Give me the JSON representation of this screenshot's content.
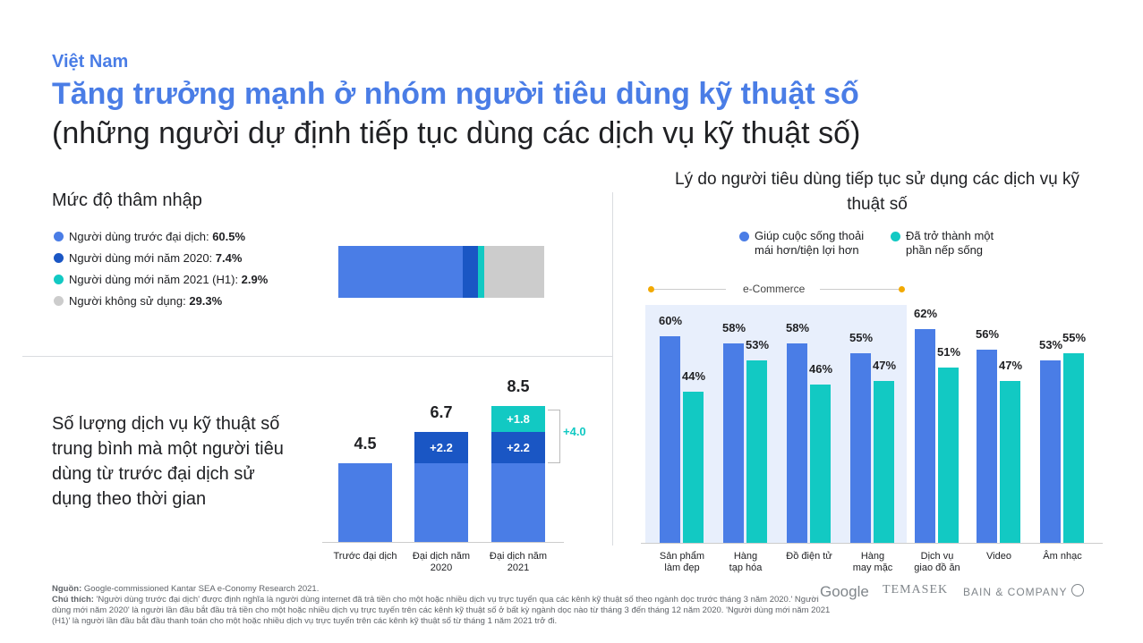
{
  "header": {
    "country": "Việt Nam",
    "title": "Tăng trưởng mạnh ở nhóm người tiêu dùng kỹ thuật số",
    "subtitle": "(những người dự định tiếp tục dùng các dịch vụ kỹ thuật số)"
  },
  "colors": {
    "blue": "#4a7de6",
    "dark_blue": "#1a56c4",
    "teal": "#12c9c3",
    "grey": "#cccccc",
    "ecommerce_bg": "#e8effc",
    "orange": "#f2a900"
  },
  "chart_data": [
    {
      "type": "bar",
      "title": "Mức độ thâm nhập",
      "orientation": "horizontal-stacked",
      "series": [
        {
          "name": "Người dùng trước đại dịch",
          "label": "60.5%",
          "value": 60.5,
          "color": "#4a7de6"
        },
        {
          "name": "Người dùng mới năm 2020",
          "label": "7.4%",
          "value": 7.4,
          "color": "#1a56c4"
        },
        {
          "name": "Người dùng mới năm 2021 (H1)",
          "label": "2.9%",
          "value": 2.9,
          "color": "#12c9c3"
        },
        {
          "name": "Người không sử dụng",
          "label": "29.3%",
          "value": 29.3,
          "color": "#cccccc"
        }
      ]
    },
    {
      "type": "bar",
      "title": "Số lượng dịch vụ kỹ thuật số trung bình mà một người tiêu dùng từ trước đại dịch sử dụng theo thời gian",
      "categories": [
        "Trước đại dịch",
        "Đại dịch năm 2020",
        "Đại dịch năm 2021"
      ],
      "totals": [
        4.5,
        6.7,
        8.5
      ],
      "total_labels": [
        "4.5",
        "6.7",
        "8.5"
      ],
      "segments": [
        {
          "name": "base",
          "values": [
            4.5,
            4.5,
            4.5
          ]
        },
        {
          "name": "2020",
          "values": [
            0,
            2.2,
            2.2
          ],
          "labels": [
            "",
            "+2.2",
            "+2.2"
          ]
        },
        {
          "name": "2021",
          "values": [
            0,
            0,
            1.8
          ],
          "labels": [
            "",
            "",
            "+1.8"
          ]
        }
      ],
      "annotation": "+4.0"
    },
    {
      "type": "bar",
      "title": "Lý do người tiêu dùng tiếp tục sử dụng các dịch vụ kỹ thuật số",
      "categories": [
        "Sản phẩm làm đẹp",
        "Hàng tạp hóa",
        "Đồ điện tử",
        "Hàng may mặc",
        "Dịch vụ giao đồ ăn",
        "Video",
        "Âm nhạc"
      ],
      "group_label": "e-Commerce",
      "ylim": [
        0,
        100
      ],
      "series": [
        {
          "name": "Giúp cuộc sống thoải mái hơn/tiện lợi hơn",
          "values": [
            60,
            58,
            58,
            55,
            62,
            56,
            53
          ]
        },
        {
          "name": "Đã trở thành một phần nếp sống",
          "values": [
            44,
            53,
            46,
            47,
            51,
            47,
            55
          ]
        }
      ]
    }
  ],
  "penetration_legend": [
    {
      "label": "Người dùng trước đại dịch: ",
      "value": "60.5%"
    },
    {
      "label": "Người dùng mới năm 2020: ",
      "value": "7.4%"
    },
    {
      "label": "Người dùng mới năm 2021 (H1): ",
      "value": "2.9%"
    },
    {
      "label": "Người không sử dụng: ",
      "value": "29.3%"
    }
  ],
  "avg_x_labels": [
    [
      "Trước đại dịch",
      ""
    ],
    [
      "Đại dịch năm",
      "2020"
    ],
    [
      "Đại dịch năm",
      "2021"
    ]
  ],
  "reason_legend": [
    [
      "Giúp cuộc sống thoải",
      "mái hơn/tiện lợi hơn"
    ],
    [
      "Đã trở thành một",
      "phần nếp sống"
    ]
  ],
  "reason_x_labels": [
    [
      "Sản phẩm",
      "làm đẹp"
    ],
    [
      "Hàng",
      "tạp hóa"
    ],
    [
      "Đồ điện tử",
      ""
    ],
    [
      "Hàng",
      "may mặc"
    ],
    [
      "Dịch vụ",
      "giao đồ ăn"
    ],
    [
      "Video",
      ""
    ],
    [
      "Âm nhạc",
      ""
    ]
  ],
  "footer": {
    "source_label": "Nguồn:",
    "source": " Google-commissioned Kantar SEA e-Conomy Research 2021.",
    "note_label": "Chú thích:",
    "note": " 'Người dùng trước đại dịch' được định nghĩa là người dùng internet đã trả tiền cho một hoặc nhiều dịch vụ trực tuyến qua các kênh kỹ thuật số theo ngành dọc trước tháng 3 năm 2020.' Người dùng mới năm 2020' là người lần đầu  bắt đầu trả tiền cho một hoặc nhiều dịch vụ trực tuyến trên các kênh kỹ thuật số ở bất kỳ ngành dọc nào từ tháng 3 đến tháng 12 năm 2020. 'Người dùng mới năm 2021 (H1)' là người lần đầu  bắt đầu thanh toán cho một hoặc nhiều dịch vụ trực tuyến trên các kênh kỹ thuật số từ tháng 1 năm 2021 trở đi."
  },
  "logos": {
    "google": "Google",
    "temasek": "TEMASEK",
    "bain": "BAIN & COMPANY"
  }
}
